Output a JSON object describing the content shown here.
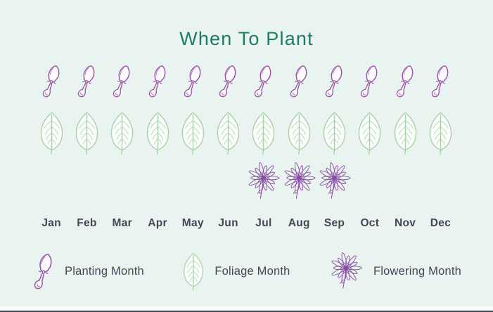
{
  "title": "When To Plant",
  "months": [
    "Jan",
    "Feb",
    "Mar",
    "Apr",
    "May",
    "Jun",
    "Jul",
    "Aug",
    "Sep",
    "Oct",
    "Nov",
    "Dec"
  ],
  "legend": [
    {
      "icon": "trowel-icon",
      "label": "Planting Month"
    },
    {
      "icon": "leaf-icon",
      "label": "Foliage Month"
    },
    {
      "icon": "flower-icon",
      "label": "Flowering Month"
    }
  ],
  "colors": {
    "background": "#e9f3f0",
    "title": "#1f7a66",
    "text": "#3e4a54",
    "planting": "#9a55a5",
    "foliage": "#a8d2ab",
    "flowering": "#8b4fa3",
    "bottom_edge": "#3c4e53"
  },
  "chart_data": {
    "type": "table",
    "title": "When To Plant",
    "categories": [
      "Jan",
      "Feb",
      "Mar",
      "Apr",
      "May",
      "Jun",
      "Jul",
      "Aug",
      "Sep",
      "Oct",
      "Nov",
      "Dec"
    ],
    "series": [
      {
        "key": "planting",
        "name": "Planting Month",
        "values": [
          1,
          1,
          1,
          1,
          1,
          1,
          1,
          1,
          1,
          1,
          1,
          1
        ]
      },
      {
        "key": "foliage",
        "name": "Foliage Month",
        "values": [
          1,
          1,
          1,
          1,
          1,
          1,
          1,
          1,
          1,
          1,
          1,
          1
        ]
      },
      {
        "key": "flowering",
        "name": "Flowering Month",
        "values": [
          0,
          0,
          0,
          0,
          0,
          0,
          1,
          1,
          1,
          0,
          0,
          0
        ]
      }
    ],
    "legend_position": "bottom",
    "grid": false
  }
}
